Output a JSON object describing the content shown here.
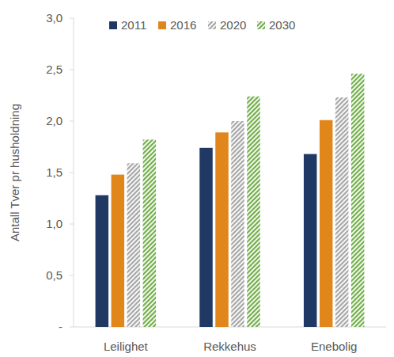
{
  "chart_data": {
    "type": "bar",
    "y_label": "Antall Tver pr husholdning",
    "categories": [
      "Leilighet",
      "Rekkehus",
      "Enebolig"
    ],
    "series": [
      {
        "name": "2011",
        "color": "#203864",
        "values": [
          1.28,
          1.74,
          1.68
        ]
      },
      {
        "name": "2016",
        "color": "#e0861a",
        "values": [
          1.48,
          1.89,
          2.01
        ]
      },
      {
        "name": "2020",
        "color": "#a5a5a5",
        "values": [
          1.59,
          2.0,
          2.23
        ]
      },
      {
        "name": "2030",
        "color": "#70ad47",
        "values": [
          1.82,
          2.24,
          2.46
        ]
      }
    ],
    "ylim": [
      0,
      3
    ],
    "yticks": [
      {
        "value": 0,
        "label": "-"
      },
      {
        "value": 0.5,
        "label": "0,5"
      },
      {
        "value": 1,
        "label": "1,0"
      },
      {
        "value": 1.5,
        "label": "1,5"
      },
      {
        "value": 2,
        "label": "2,0"
      },
      {
        "value": 2.5,
        "label": "2,5"
      },
      {
        "value": 3,
        "label": "3,0"
      }
    ],
    "grid": false,
    "legend": "top"
  }
}
